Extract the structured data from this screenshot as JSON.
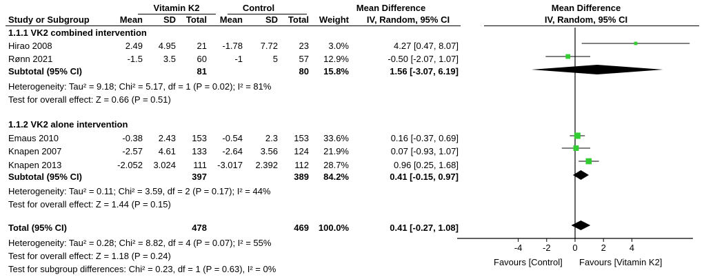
{
  "headers": {
    "study": "Study or Subgroup",
    "vk2_group": "Vitamin K2",
    "control_group": "Control",
    "mean": "Mean",
    "sd": "SD",
    "total": "Total",
    "weight": "Weight",
    "md_table": "Mean Difference",
    "md_table_sub": "IV, Random, 95% CI",
    "md_plot": "Mean Difference",
    "md_plot_sub": "IV, Random, 95% CI"
  },
  "subgroups": [
    {
      "title": "1.1.1 VK2 combined intervention",
      "studies": [
        {
          "name": "Hirao 2008",
          "vk_mean": "2.49",
          "vk_sd": "4.95",
          "vk_total": "21",
          "c_mean": "-1.78",
          "c_sd": "7.72",
          "c_total": "23",
          "weight": "3.0%",
          "ci_text": "4.27 [0.47, 8.07]"
        },
        {
          "name": "Rønn 2021",
          "vk_mean": "-1.5",
          "vk_sd": "3.5",
          "vk_total": "60",
          "c_mean": "-1",
          "c_sd": "5",
          "c_total": "57",
          "weight": "12.9%",
          "ci_text": "-0.50 [-2.07, 1.07]"
        }
      ],
      "subtotal": {
        "label": "Subtotal (95% CI)",
        "vk_total": "81",
        "c_total": "80",
        "weight": "15.8%",
        "ci_text": "1.56 [-3.07, 6.19]"
      },
      "heterogeneity": "Heterogeneity: Tau² = 9.18; Chi² = 5.17, df = 1 (P = 0.02); I² = 81%",
      "overall": "Test for overall effect: Z = 0.66 (P = 0.51)"
    },
    {
      "title": "1.1.2 VK2 alone intervention",
      "studies": [
        {
          "name": "Emaus 2010",
          "vk_mean": "-0.38",
          "vk_sd": "2.43",
          "vk_total": "153",
          "c_mean": "-0.54",
          "c_sd": "2.3",
          "c_total": "153",
          "weight": "33.6%",
          "ci_text": "0.16 [-0.37, 0.69]"
        },
        {
          "name": "Knapen 2007",
          "vk_mean": "-2.57",
          "vk_sd": "4.61",
          "vk_total": "133",
          "c_mean": "-2.64",
          "c_sd": "3.56",
          "c_total": "124",
          "weight": "21.9%",
          "ci_text": "0.07 [-0.93, 1.07]"
        },
        {
          "name": "Knapen 2013",
          "vk_mean": "-2.052",
          "vk_sd": "3.024",
          "vk_total": "111",
          "c_mean": "-3.017",
          "c_sd": "2.392",
          "c_total": "112",
          "weight": "28.7%",
          "ci_text": "0.96 [0.25, 1.68]"
        }
      ],
      "subtotal": {
        "label": "Subtotal (95% CI)",
        "vk_total": "397",
        "c_total": "389",
        "weight": "84.2%",
        "ci_text": "0.41 [-0.15, 0.97]"
      },
      "heterogeneity": "Heterogeneity: Tau² = 0.11; Chi² = 3.59, df = 2 (P = 0.17); I² = 44%",
      "overall": "Test for overall effect: Z = 1.44 (P = 0.15)"
    }
  ],
  "total": {
    "label": "Total (95% CI)",
    "vk_total": "478",
    "c_total": "469",
    "weight": "100.0%",
    "ci_text": "0.41 [-0.27, 1.08]",
    "heterogeneity": "Heterogeneity: Tau² = 0.28; Chi² = 8.82, df = 4 (P = 0.07); I² = 55%",
    "overall": "Test for overall effect: Z = 1.18 (P = 0.24)",
    "subgroup_diff": "Test for subgroup differences: Chi² = 0.23, df = 1 (P = 0.63), I² = 0%"
  },
  "axis": {
    "favours_left": "Favours [Control]",
    "favours_right": "Favours [Vitamin K2]"
  },
  "chart_data": {
    "type": "forest",
    "xlim": [
      -8.5,
      8.5
    ],
    "xticks": [
      -4,
      -2,
      0,
      2,
      4
    ],
    "null_line": 0,
    "marker_color": "#33cc33",
    "studies": [
      {
        "name": "Hirao 2008",
        "md": 4.27,
        "lo": 0.47,
        "hi": 8.07,
        "weight": 3.0
      },
      {
        "name": "Rønn 2021",
        "md": -0.5,
        "lo": -2.07,
        "hi": 1.07,
        "weight": 12.9
      },
      {
        "name": "Emaus 2010",
        "md": 0.16,
        "lo": -0.37,
        "hi": 0.69,
        "weight": 33.6
      },
      {
        "name": "Knapen 2007",
        "md": 0.07,
        "lo": -0.93,
        "hi": 1.07,
        "weight": 21.9
      },
      {
        "name": "Knapen 2013",
        "md": 0.96,
        "lo": 0.25,
        "hi": 1.68,
        "weight": 28.7
      }
    ],
    "diamonds": [
      {
        "name": "Subtotal 1.1.1",
        "md": 1.56,
        "lo": -3.07,
        "hi": 6.19
      },
      {
        "name": "Subtotal 1.1.2",
        "md": 0.41,
        "lo": -0.15,
        "hi": 0.97
      },
      {
        "name": "Total",
        "md": 0.41,
        "lo": -0.27,
        "hi": 1.08
      }
    ]
  }
}
